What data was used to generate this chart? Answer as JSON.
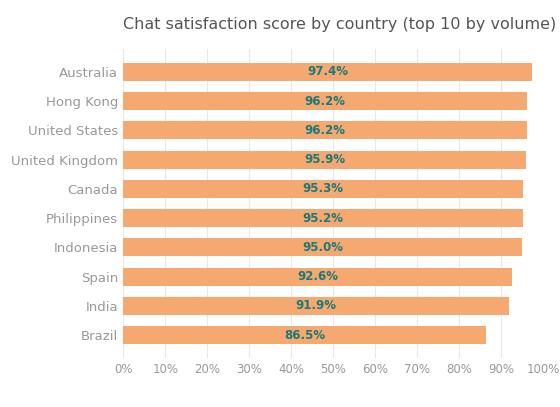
{
  "title": "Chat satisfaction score by country (top 10 by volume)",
  "categories": [
    "Australia",
    "Hong Kong",
    "United States",
    "United Kingdom",
    "Canada",
    "Philippines",
    "Indonesia",
    "Spain",
    "India",
    "Brazil"
  ],
  "values": [
    97.4,
    96.2,
    96.2,
    95.9,
    95.3,
    95.2,
    95.0,
    92.6,
    91.9,
    86.5
  ],
  "labels": [
    "97.4%",
    "96.2%",
    "96.2%",
    "95.9%",
    "95.3%",
    "95.2%",
    "95.0%",
    "92.6%",
    "91.9%",
    "86.5%"
  ],
  "bar_color": "#F5A870",
  "label_color": "#1a7a7a",
  "title_color": "#555555",
  "axis_label_color": "#999999",
  "background_color": "#ffffff",
  "xlim": [
    0,
    100
  ],
  "xticks": [
    0,
    10,
    20,
    30,
    40,
    50,
    60,
    70,
    80,
    90,
    100
  ],
  "title_fontsize": 11.5,
  "label_fontsize": 8.5,
  "ytick_fontsize": 9.5,
  "xtick_fontsize": 8.5
}
